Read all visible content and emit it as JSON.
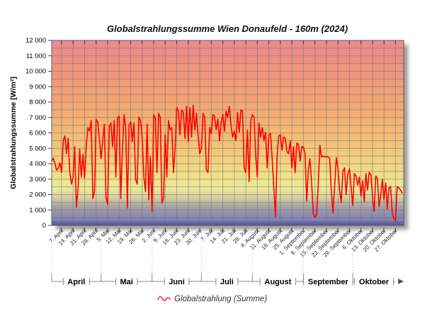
{
  "window": {
    "background": "#ffffff"
  },
  "chart_data": {
    "type": "line",
    "title": "Globalstrahlungssumme Wien Donaufeld - 160m (2024)",
    "ylabel": "Globalstrahlungssumme [W/m²]",
    "xlabel": "",
    "ylim": [
      0,
      12000
    ],
    "y_tick_step": 1000,
    "y_grid_step": 500,
    "y_tick_labels_top_to_bottom": [
      "12 000",
      "11 000",
      "10 000",
      "9 000",
      "8 000",
      "7 000",
      "6 000",
      "5 000",
      "4 000",
      "3 000",
      "2 000",
      "1 000",
      "0"
    ],
    "days_total": 214,
    "x_start_date": "1. April 2024",
    "x_first_tick_day": 6,
    "x_tick_interval_days": 7,
    "x_tick_labels": [
      "7. April",
      "14. April",
      "21. April",
      "28. April",
      "5. Mai",
      "12. Mai",
      "19. Mai",
      "26. Mai",
      "2. Juni",
      "9. Juni",
      "16. Juni",
      "23. Juni",
      "30. Juni",
      "7. Juli",
      "14. Juli",
      "21. Juli",
      "28. Juli",
      "4. August",
      "11. August",
      "18. August",
      "25. August",
      "1. September",
      "8. September",
      "15. September",
      "22. September",
      "29. September",
      "6. Oktober",
      "13. Oktober",
      "20. Oktober",
      "27. Oktober"
    ],
    "month_groups": [
      {
        "label": "April",
        "start_day": 0,
        "end_day": 30
      },
      {
        "label": "Mai",
        "start_day": 30,
        "end_day": 61
      },
      {
        "label": "Juni",
        "start_day": 61,
        "end_day": 91
      },
      {
        "label": "Juli",
        "start_day": 91,
        "end_day": 122
      },
      {
        "label": "August",
        "start_day": 122,
        "end_day": 153
      },
      {
        "label": "September",
        "start_day": 153,
        "end_day": 183
      },
      {
        "label": "Oktober",
        "start_day": 183,
        "end_day": 214
      }
    ],
    "legend": [
      {
        "label": "Globalstrahlung (Summe)",
        "color": "#ff0000",
        "marker": "wavy-line"
      }
    ],
    "grid": true,
    "line_color": "#ff0000",
    "plot_background_gradient": [
      {
        "offset": 0.0,
        "color": "#ee8a8a"
      },
      {
        "offset": 0.12,
        "color": "#ef917f"
      },
      {
        "offset": 0.24,
        "color": "#f19c77"
      },
      {
        "offset": 0.38,
        "color": "#f3ab70"
      },
      {
        "offset": 0.52,
        "color": "#f4bd74"
      },
      {
        "offset": 0.65,
        "color": "#f3d07e"
      },
      {
        "offset": 0.74,
        "color": "#f0e289"
      },
      {
        "offset": 0.8,
        "color": "#eeea96"
      },
      {
        "offset": 0.85,
        "color": "#d4cfa0"
      },
      {
        "offset": 0.9,
        "color": "#a7a1a2"
      },
      {
        "offset": 0.95,
        "color": "#8b89ae"
      },
      {
        "offset": 1.0,
        "color": "#7b7eb6"
      }
    ],
    "bottom_bevel_colors": [
      "#7074b2",
      "#51558e"
    ],
    "series": [
      {
        "name": "Globalstrahlung (Summe)",
        "color": "#ff0000",
        "daily_values_wm2": [
          4180,
          4370,
          4000,
          3580,
          3730,
          4050,
          3430,
          5500,
          5800,
          4650,
          5650,
          3500,
          2680,
          3140,
          5110,
          1180,
          2370,
          4960,
          3140,
          4600,
          3060,
          5200,
          6350,
          6120,
          6800,
          1740,
          2200,
          6880,
          6700,
          5600,
          4330,
          5500,
          6570,
          1820,
          1360,
          6420,
          6650,
          5110,
          6800,
          3140,
          6950,
          7100,
          1740,
          5000,
          7180,
          6350,
          1130,
          6500,
          6720,
          5420,
          6650,
          2990,
          2680,
          7030,
          6800,
          5730,
          3140,
          2200,
          6570,
          1660,
          4500,
          900,
          7180,
          6950,
          3430,
          7260,
          7030,
          1440,
          1740,
          5880,
          3140,
          6800,
          6190,
          6350,
          3430,
          5000,
          7640,
          7410,
          5880,
          7490,
          7340,
          5650,
          7720,
          5420,
          7640,
          5730,
          7790,
          6190,
          7260,
          5800,
          4650,
          4960,
          7260,
          7030,
          3580,
          3430,
          6350,
          5960,
          7180,
          7100,
          6200,
          6900,
          5500,
          6700,
          7200,
          6100,
          7400,
          7000,
          7720,
          6500,
          5730,
          6120,
          5500,
          7340,
          6040,
          7490,
          7410,
          3730,
          3430,
          6190,
          2840,
          6800,
          7180,
          7030,
          4500,
          3140,
          6650,
          5730,
          6350,
          5500,
          6040,
          3730,
          5880,
          5960,
          4330,
          2500,
          550,
          4500,
          5800,
          5880,
          4880,
          5730,
          5650,
          4800,
          4650,
          5500,
          3730,
          5110,
          3430,
          5340,
          5270,
          4180,
          5110,
          5110,
          4650,
          1590,
          3580,
          4330,
          2840,
          740,
          510,
          660,
          2500,
          5200,
          4430,
          4500,
          4430,
          4480,
          4430,
          4350,
          2200,
          830,
          2600,
          4400,
          3740,
          2300,
          1500,
          3500,
          3740,
          2000,
          3300,
          3670,
          2440,
          1290,
          3360,
          3210,
          2600,
          3130,
          1900,
          2900,
          1520,
          3360,
          2290,
          3440,
          3290,
          1830,
          900,
          3210,
          3050,
          1210,
          1980,
          2980,
          1670,
          2750,
          1060,
          2440,
          2520,
          830,
          440,
          290,
          2520,
          2440,
          2300,
          2100
        ]
      }
    ]
  }
}
